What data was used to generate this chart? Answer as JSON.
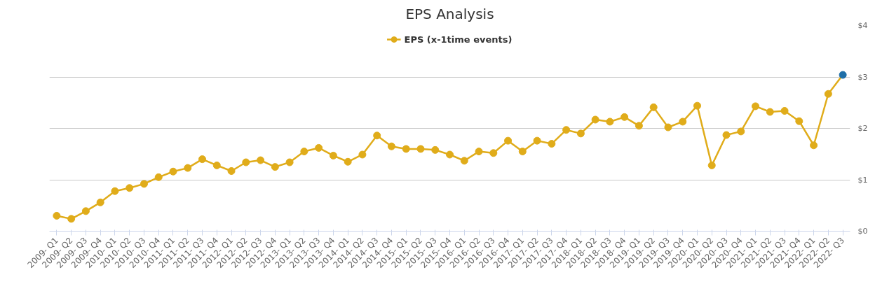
{
  "chart_data": {
    "type": "line",
    "title": "EPS Analysis",
    "categories": [
      "2009- Q1",
      "2009- Q2",
      "2009- Q3",
      "2009- Q4",
      "2010- Q1",
      "2010- Q2",
      "2010- Q3",
      "2010- Q4",
      "2011- Q1",
      "2011- Q2",
      "2011- Q3",
      "2011- Q4",
      "2012- Q1",
      "2012- Q2",
      "2012- Q3",
      "2012- Q4",
      "2013- Q1",
      "2013- Q2",
      "2013- Q3",
      "2013- Q4",
      "2014- Q1",
      "2014- Q2",
      "2014- Q3",
      "2014- Q4",
      "2015- Q1",
      "2015- Q2",
      "2015- Q3",
      "2015- Q4",
      "2016- Q1",
      "2016- Q2",
      "2016- Q3",
      "2016- Q4",
      "2017- Q1",
      "2017- Q2",
      "2017- Q3",
      "2017- Q4",
      "2018- Q1",
      "2018- Q2",
      "2018- Q3",
      "2018- Q4",
      "2019- Q1",
      "2019- Q2",
      "2019- Q3",
      "2019- Q4",
      "2020- Q1",
      "2020- Q2",
      "2020- Q3",
      "2020- Q4",
      "2021- Q1",
      "2021- Q2",
      "2021- Q3",
      "2021- Q4",
      "2022- Q1",
      "2022- Q2",
      "2022- Q3"
    ],
    "series": [
      {
        "name": "EPS (x-1time events)",
        "color": "#e0ac1a",
        "colors": [
          "#e0ac1a",
          "#e0ac1a",
          "#e0ac1a",
          "#e0ac1a",
          "#e0ac1a",
          "#e0ac1a",
          "#e0ac1a",
          "#e0ac1a",
          "#e0ac1a",
          "#e0ac1a",
          "#e0ac1a",
          "#e0ac1a",
          "#e0ac1a",
          "#e0ac1a",
          "#e0ac1a",
          "#e0ac1a",
          "#e0ac1a",
          "#e0ac1a",
          "#e0ac1a",
          "#e0ac1a",
          "#e0ac1a",
          "#e0ac1a",
          "#e0ac1a",
          "#e0ac1a",
          "#e0ac1a",
          "#e0ac1a",
          "#e0ac1a",
          "#e0ac1a",
          "#e0ac1a",
          "#e0ac1a",
          "#e0ac1a",
          "#e0ac1a",
          "#e0ac1a",
          "#e0ac1a",
          "#e0ac1a",
          "#e0ac1a",
          "#e0ac1a",
          "#e0ac1a",
          "#e0ac1a",
          "#e0ac1a",
          "#e0ac1a",
          "#e0ac1a",
          "#e0ac1a",
          "#e0ac1a",
          "#e0ac1a",
          "#e0ac1a",
          "#e0ac1a",
          "#e0ac1a",
          "#e0ac1a",
          "#e0ac1a",
          "#e0ac1a",
          "#e0ac1a",
          "#e0ac1a",
          "#e0ac1a",
          "#1f6fa8"
        ],
        "values": [
          0.3,
          0.24,
          0.39,
          0.56,
          0.78,
          0.84,
          0.92,
          1.05,
          1.16,
          1.23,
          1.4,
          1.28,
          1.17,
          1.34,
          1.38,
          1.25,
          1.34,
          1.55,
          1.62,
          1.47,
          1.35,
          1.49,
          1.86,
          1.65,
          1.6,
          1.6,
          1.58,
          1.49,
          1.37,
          1.55,
          1.52,
          1.76,
          1.55,
          1.76,
          1.7,
          1.97,
          1.9,
          2.17,
          2.13,
          2.22,
          2.05,
          2.41,
          2.02,
          2.13,
          2.44,
          1.28,
          1.87,
          1.94,
          2.43,
          2.32,
          2.34,
          2.14,
          1.67,
          2.67,
          3.04
        ]
      }
    ],
    "ylim": [
      0,
      4
    ],
    "yticks": [
      {
        "value": 0,
        "label": "$0"
      },
      {
        "value": 1,
        "label": "$1"
      },
      {
        "value": 2,
        "label": "$2"
      },
      {
        "value": 3,
        "label": "$3"
      },
      {
        "value": 4,
        "label": "$4"
      }
    ],
    "grid": "y",
    "legend": "top",
    "marker": "circle",
    "line_style": "solid"
  }
}
